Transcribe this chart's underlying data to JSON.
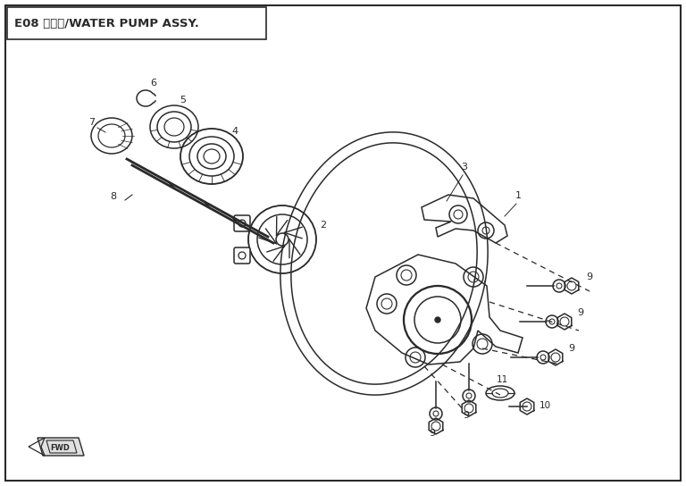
{
  "title": "E08 水泵组/WATER PUMP ASSY.",
  "bg_color": "#ffffff",
  "line_color": "#2a2a2a",
  "fig_width": 7.68,
  "fig_height": 5.44,
  "dpi": 100
}
